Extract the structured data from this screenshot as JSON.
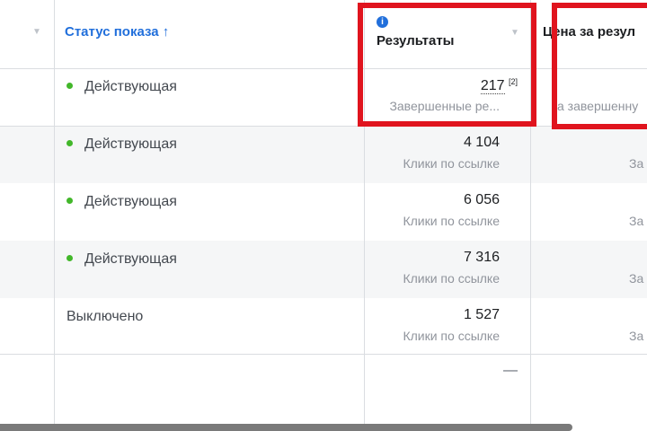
{
  "header": {
    "status_col": "Статус показа",
    "sort_arrow": "↑",
    "results_col": "Результаты",
    "price_col": "Цена за резул"
  },
  "rows": [
    {
      "status": "Действующая",
      "active": true,
      "result": "217",
      "footnote": "[2]",
      "result_type": "Завершенные ре...",
      "price_sub": "а завершенну"
    },
    {
      "status": "Действующая",
      "active": true,
      "result": "4 104",
      "result_type": "Клики по ссылке",
      "price_sub": "За"
    },
    {
      "status": "Действующая",
      "active": true,
      "result": "6 056",
      "result_type": "Клики по ссылке",
      "price_sub": "За"
    },
    {
      "status": "Действующая",
      "active": true,
      "result": "7 316",
      "result_type": "Клики по ссылке",
      "price_sub": "За"
    },
    {
      "status": "Выключено",
      "active": false,
      "result": "1 527",
      "result_type": "Клики по ссылке",
      "price_sub": "За"
    }
  ],
  "total": {
    "result": "—"
  },
  "colors": {
    "accent": "#216fdb",
    "active_dot": "#42b72a",
    "highlight": "#e0141e"
  }
}
